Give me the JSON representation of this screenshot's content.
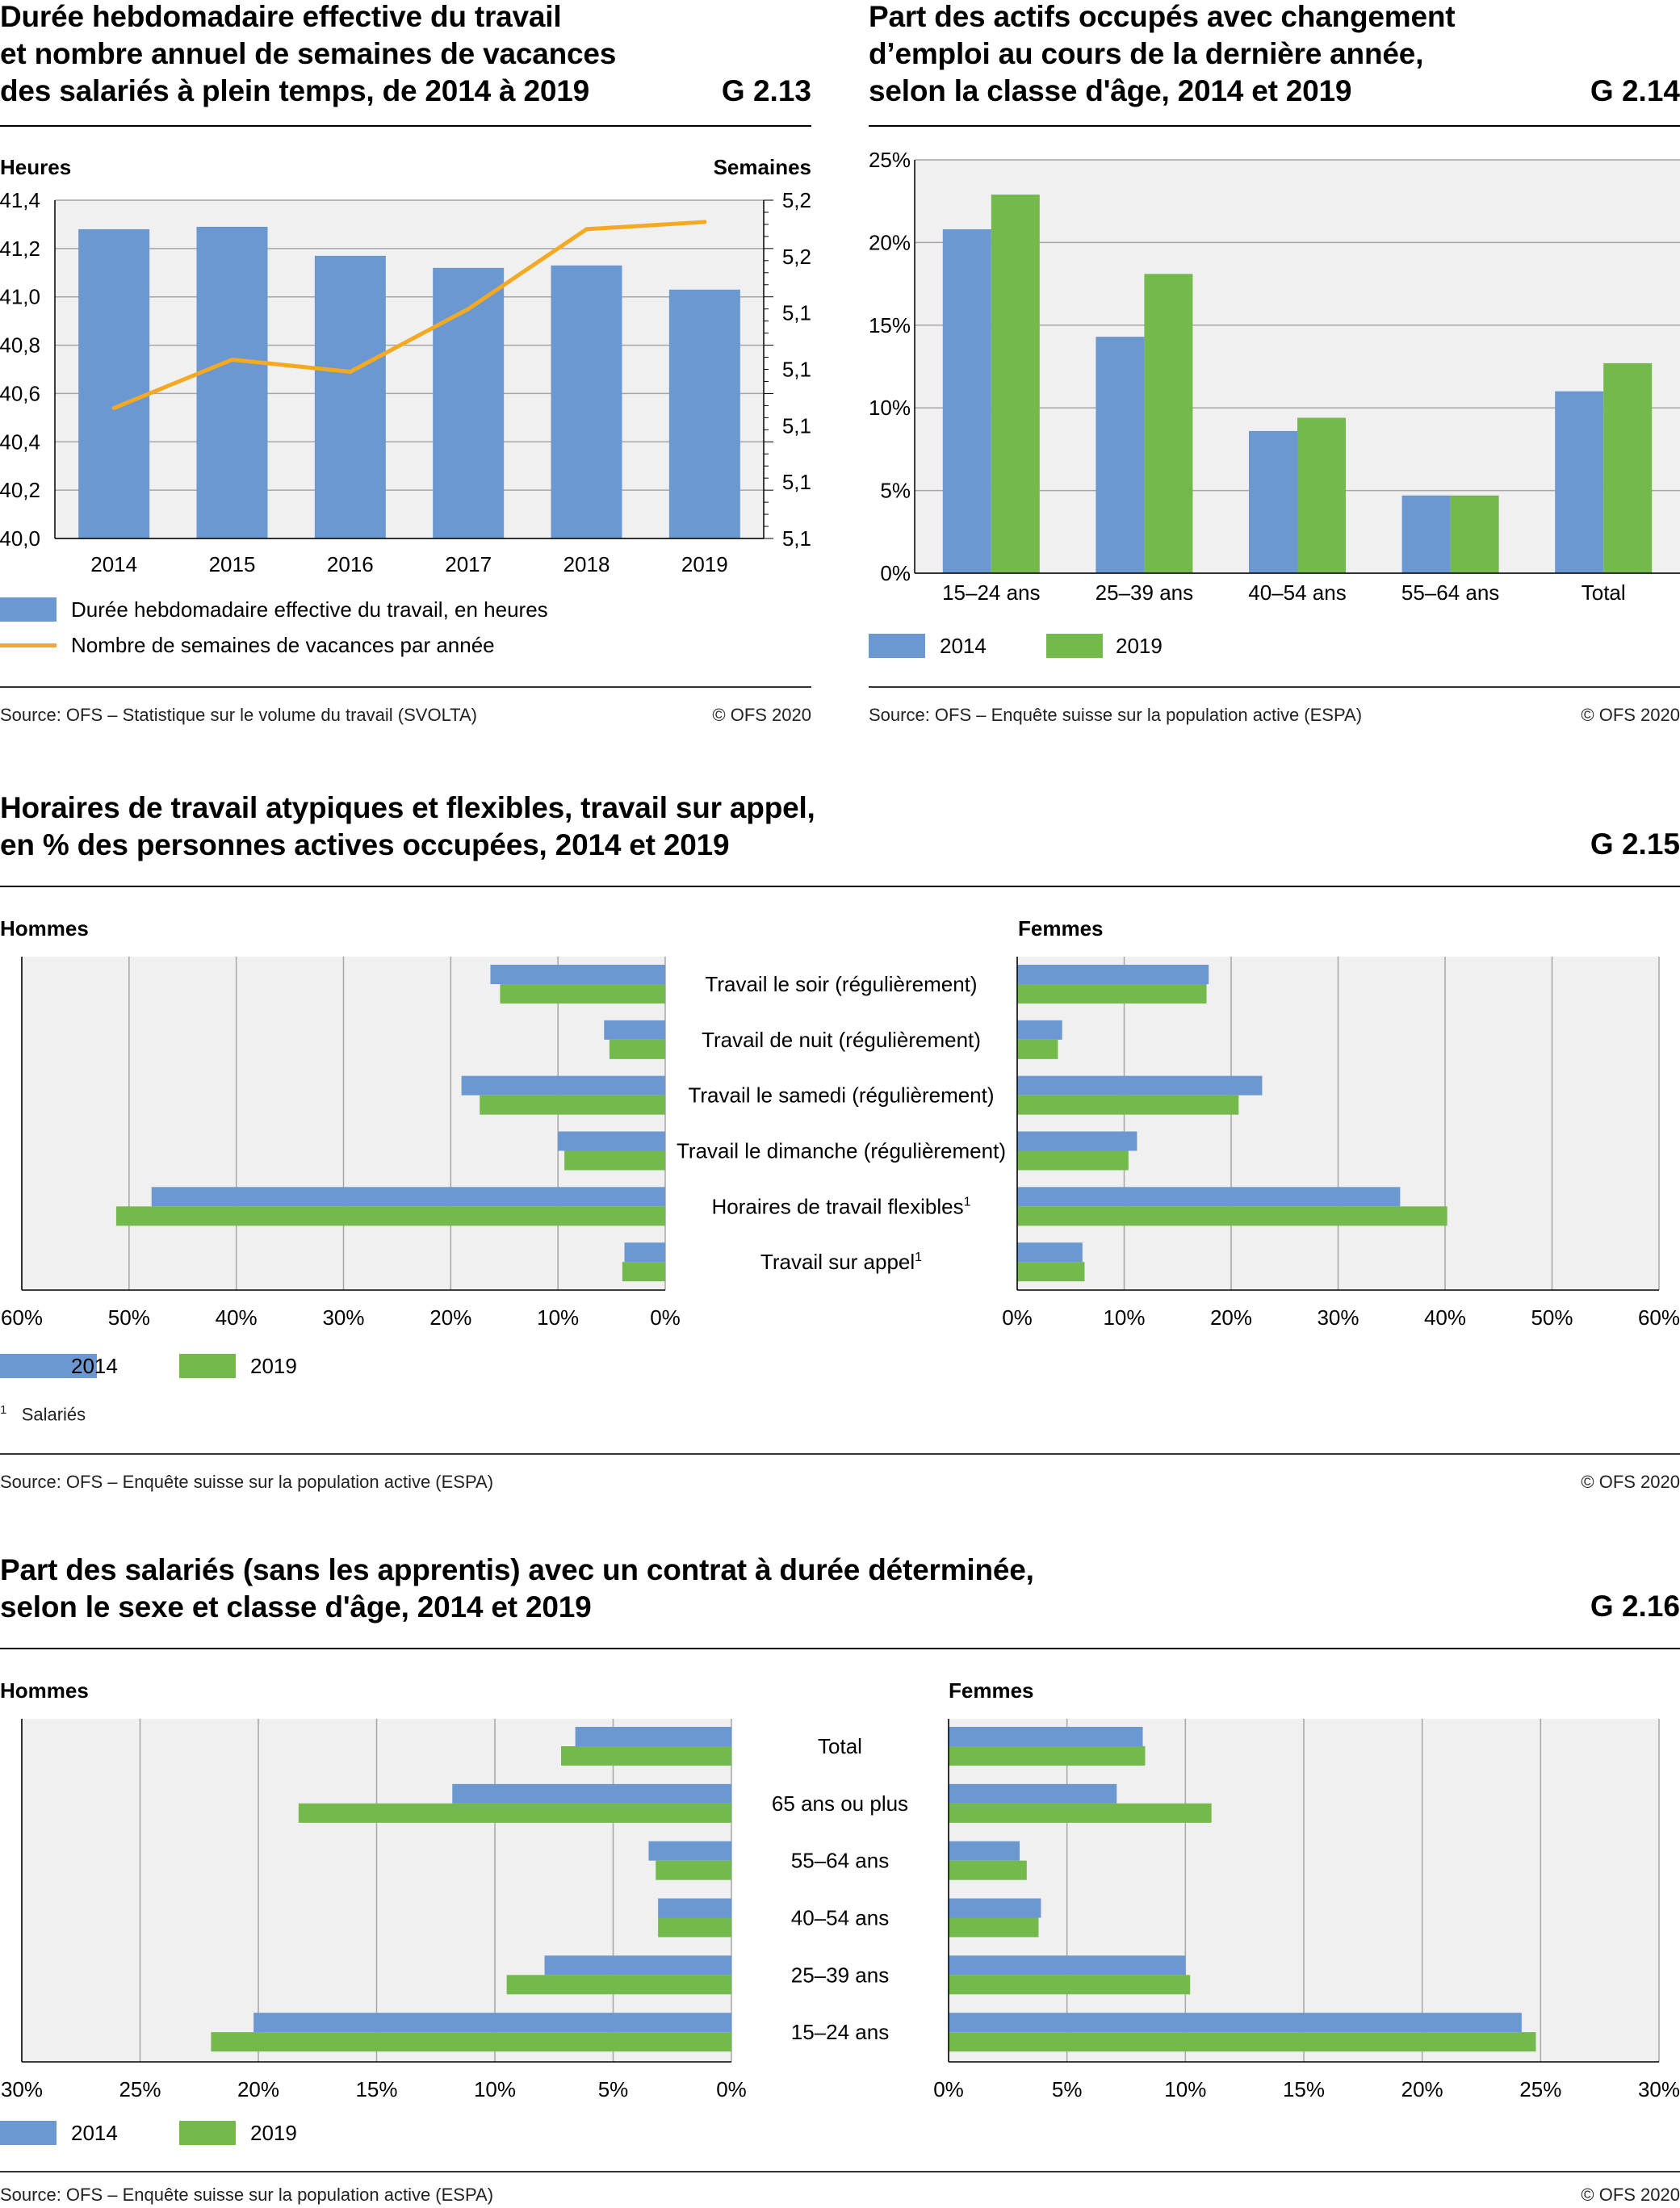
{
  "colors": {
    "blue": "#6b98d0",
    "green": "#74b94c",
    "orange": "#f4a922",
    "plot_bg": "#f0f0f0",
    "grid": "#a6a6a6"
  },
  "g213": {
    "title_lines": [
      "Durée hebdomadaire effective du travail",
      "et nombre annuel de semaines de vacances",
      "des salariés à plein temps, de 2014 à 2019"
    ],
    "code": "G 2.13",
    "left_unit": "Heures",
    "right_unit": "Semaines",
    "legend": [
      "Durée hebdomadaire effective du travail, en heures",
      "Nombre de semaines de vacances par année"
    ],
    "source": "Source: OFS – Statistique sur le volume du travail (SVOLTA)",
    "copyright": "© OFS 2020"
  },
  "g214": {
    "title_lines": [
      "Part des actifs occupés avec changement",
      "d’emploi au cours de la dernière année,",
      "selon la classe d'âge, 2014 et 2019"
    ],
    "code": "G 2.14",
    "legend": [
      "2014",
      "2019"
    ],
    "source": "Source: OFS – Enquête suisse sur la population active (ESPA)",
    "copyright": "© OFS 2020"
  },
  "g215": {
    "title_lines": [
      "Horaires de travail atypiques et flexibles, travail sur appel,",
      "en % des personnes actives occupées, 2014 et 2019"
    ],
    "code": "G 2.15",
    "left_label": "Hommes",
    "right_label": "Femmes",
    "legend": [
      "2014",
      "2019"
    ],
    "footnote_mark": "1",
    "footnote": "Salariés",
    "source": "Source: OFS – Enquête suisse sur la population active (ESPA)",
    "copyright": "© OFS 2020"
  },
  "g216": {
    "title_lines": [
      "Part des salariés (sans les apprentis) avec un contrat à durée déterminée,",
      "selon le sexe et classe d'âge, 2014 et 2019"
    ],
    "code": "G 2.16",
    "left_label": "Hommes",
    "right_label": "Femmes",
    "legend": [
      "2014",
      "2019"
    ],
    "source": "Source: OFS – Enquête suisse sur la population active (ESPA)",
    "copyright": "© OFS 2020"
  },
  "chart_data": [
    {
      "id": "G 2.13",
      "type": "bar",
      "categories": [
        "2014",
        "2015",
        "2016",
        "2017",
        "2018",
        "2019"
      ],
      "series": [
        {
          "name": "Durée hebdomadaire effective du travail, en heures",
          "type": "bar",
          "axis": "left",
          "values": [
            41.28,
            41.29,
            41.17,
            41.12,
            41.13,
            41.03
          ]
        },
        {
          "name": "Nombre de semaines de vacances par année",
          "type": "line",
          "axis": "right",
          "values": [
            5.124,
            5.144,
            5.139,
            5.165,
            5.198,
            5.201
          ]
        }
      ],
      "ylim": [
        40.0,
        41.4
      ],
      "yticks": [
        "40,0",
        "40,2",
        "40,4",
        "40,6",
        "40,8",
        "41,0",
        "41,2",
        "41,4"
      ],
      "y2lim": [
        5.07,
        5.21
      ],
      "y2ticks": [
        "5,1",
        "5,1",
        "5,1",
        "5,1",
        "5,1",
        "5,2",
        "5,2"
      ],
      "ylabel": "Heures",
      "y2label": "Semaines",
      "grid": true,
      "legend": "bottom"
    },
    {
      "id": "G 2.14",
      "type": "bar",
      "categories": [
        "15–24 ans",
        "25–39 ans",
        "40–54 ans",
        "55–64 ans",
        "Total"
      ],
      "series": [
        {
          "name": "2014",
          "values": [
            20.8,
            14.3,
            8.6,
            4.7,
            11.0
          ]
        },
        {
          "name": "2019",
          "values": [
            22.9,
            18.1,
            9.4,
            4.7,
            12.7
          ]
        }
      ],
      "ylim": [
        0,
        25
      ],
      "yticks": [
        "0%",
        "5%",
        "10%",
        "15%",
        "20%",
        "25%"
      ],
      "grid": true,
      "legend": "bottom"
    },
    {
      "id": "G 2.15",
      "type": "bar",
      "orientation": "horizontal-butterfly",
      "categories": [
        "Travail le soir (régulièrement)",
        "Travail de nuit (régulièrement)",
        "Travail le samedi (régulièrement)",
        "Travail le dimanche (régulièrement)",
        "Horaires de travail flexibles",
        "Travail sur appel"
      ],
      "category_marks": [
        "",
        "",
        "",
        "",
        "1",
        "1"
      ],
      "panels": [
        {
          "name": "Hommes",
          "series": [
            {
              "name": "2014",
              "values": [
                16.3,
                5.7,
                19.0,
                10.0,
                47.9,
                3.8
              ]
            },
            {
              "name": "2019",
              "values": [
                15.4,
                5.2,
                17.3,
                9.4,
                51.2,
                4.0
              ]
            }
          ]
        },
        {
          "name": "Femmes",
          "series": [
            {
              "name": "2014",
              "values": [
                17.9,
                4.2,
                22.9,
                11.2,
                35.8,
                6.1
              ]
            },
            {
              "name": "2019",
              "values": [
                17.7,
                3.8,
                20.7,
                10.4,
                40.2,
                6.3
              ]
            }
          ]
        }
      ],
      "xlim": [
        0,
        60
      ],
      "xticks_left": [
        "60%",
        "50%",
        "40%",
        "30%",
        "20%",
        "10%",
        "0%"
      ],
      "xticks_right": [
        "0%",
        "10%",
        "20%",
        "30%",
        "40%",
        "50%",
        "60%"
      ],
      "grid": true,
      "legend": "bottom"
    },
    {
      "id": "G 2.16",
      "type": "bar",
      "orientation": "horizontal-butterfly",
      "categories": [
        "Total",
        "65 ans ou plus",
        "55–64 ans",
        "40–54 ans",
        "25–39 ans",
        "15–24 ans"
      ],
      "panels": [
        {
          "name": "Hommes",
          "series": [
            {
              "name": "2014",
              "values": [
                6.6,
                11.8,
                3.5,
                3.1,
                7.9,
                20.2
              ]
            },
            {
              "name": "2019",
              "values": [
                7.2,
                18.3,
                3.2,
                3.1,
                9.5,
                22.0
              ]
            }
          ]
        },
        {
          "name": "Femmes",
          "series": [
            {
              "name": "2014",
              "values": [
                8.2,
                7.1,
                3.0,
                3.9,
                10.0,
                24.2
              ]
            },
            {
              "name": "2019",
              "values": [
                8.3,
                11.1,
                3.3,
                3.8,
                10.2,
                24.8
              ]
            }
          ]
        }
      ],
      "xlim": [
        0,
        30
      ],
      "xticks_left": [
        "30%",
        "25%",
        "20%",
        "15%",
        "10%",
        "5%",
        "0%"
      ],
      "xticks_right": [
        "0%",
        "5%",
        "10%",
        "15%",
        "20%",
        "25%",
        "30%"
      ],
      "grid": true,
      "legend": "bottom"
    }
  ]
}
